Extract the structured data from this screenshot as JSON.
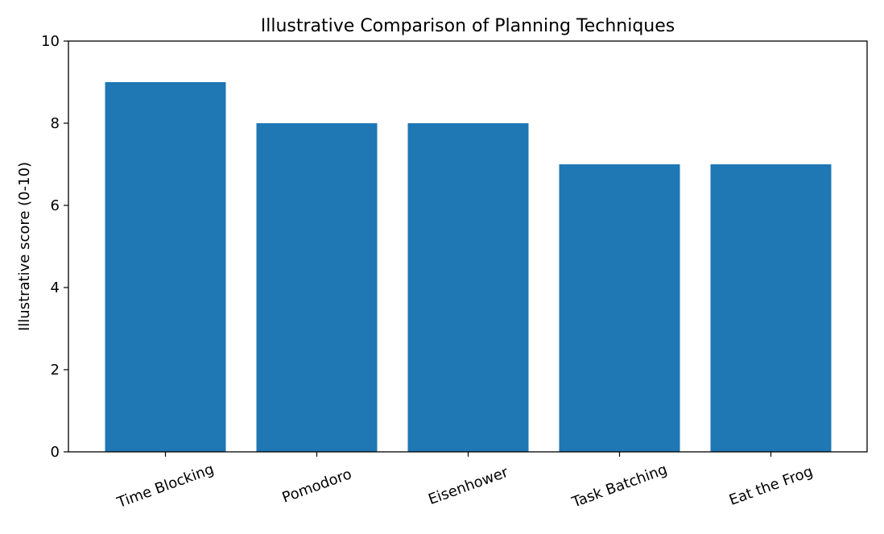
{
  "chart_data": {
    "type": "bar",
    "title": "Illustrative Comparison of Planning Techniques",
    "xlabel": "",
    "ylabel": "Illustrative score (0-10)",
    "categories": [
      "Time Blocking",
      "Pomodoro",
      "Eisenhower",
      "Task Batching",
      "Eat the Frog"
    ],
    "values": [
      9,
      8,
      8,
      7,
      7
    ],
    "ylim": [
      0,
      10
    ],
    "yticks": [
      0,
      2,
      4,
      6,
      8,
      10
    ],
    "grid": false,
    "legend": false,
    "bar_color": "#1f77b4",
    "xtick_label_rotation_deg": -20
  }
}
